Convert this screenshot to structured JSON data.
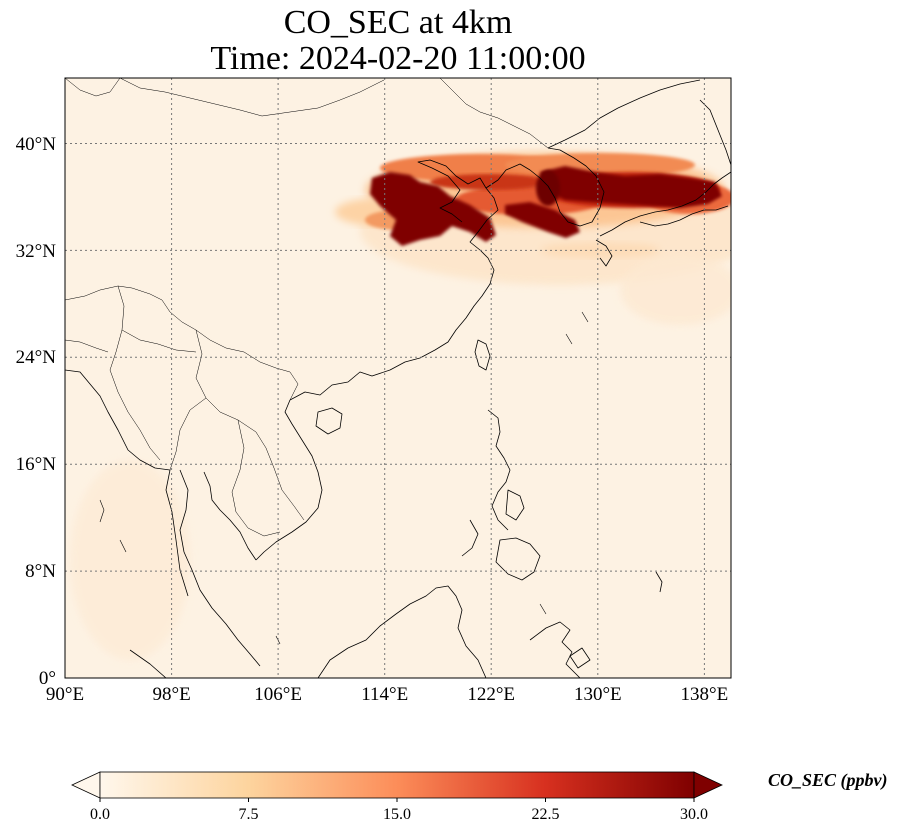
{
  "title_line1": "CO_SEC at 4km",
  "title_line2": "Time: 2024-02-20 11:00:00",
  "map": {
    "lon_range": [
      90,
      140
    ],
    "lat_range": [
      0,
      44
    ],
    "lon_ticks": [
      "90°E",
      "98°E",
      "106°E",
      "114°E",
      "122°E",
      "130°E",
      "138°E"
    ],
    "lat_ticks": [
      "0°",
      "8°N",
      "16°N",
      "24°N",
      "32°N",
      "40°N"
    ],
    "gridlines": true,
    "land_outline_color": "#000000",
    "plume_colors": [
      "#fdf3e6",
      "#fdc98f",
      "#f0703a",
      "#b81c07",
      "#7f0000"
    ]
  },
  "colorbar": {
    "label": "CO_SEC (ppbv)",
    "min": 0.0,
    "max": 30.0,
    "ticks": [
      "0.0",
      "7.5",
      "15.0",
      "22.5",
      "30.0"
    ],
    "extend": "both",
    "colormap": "OrRd"
  }
}
